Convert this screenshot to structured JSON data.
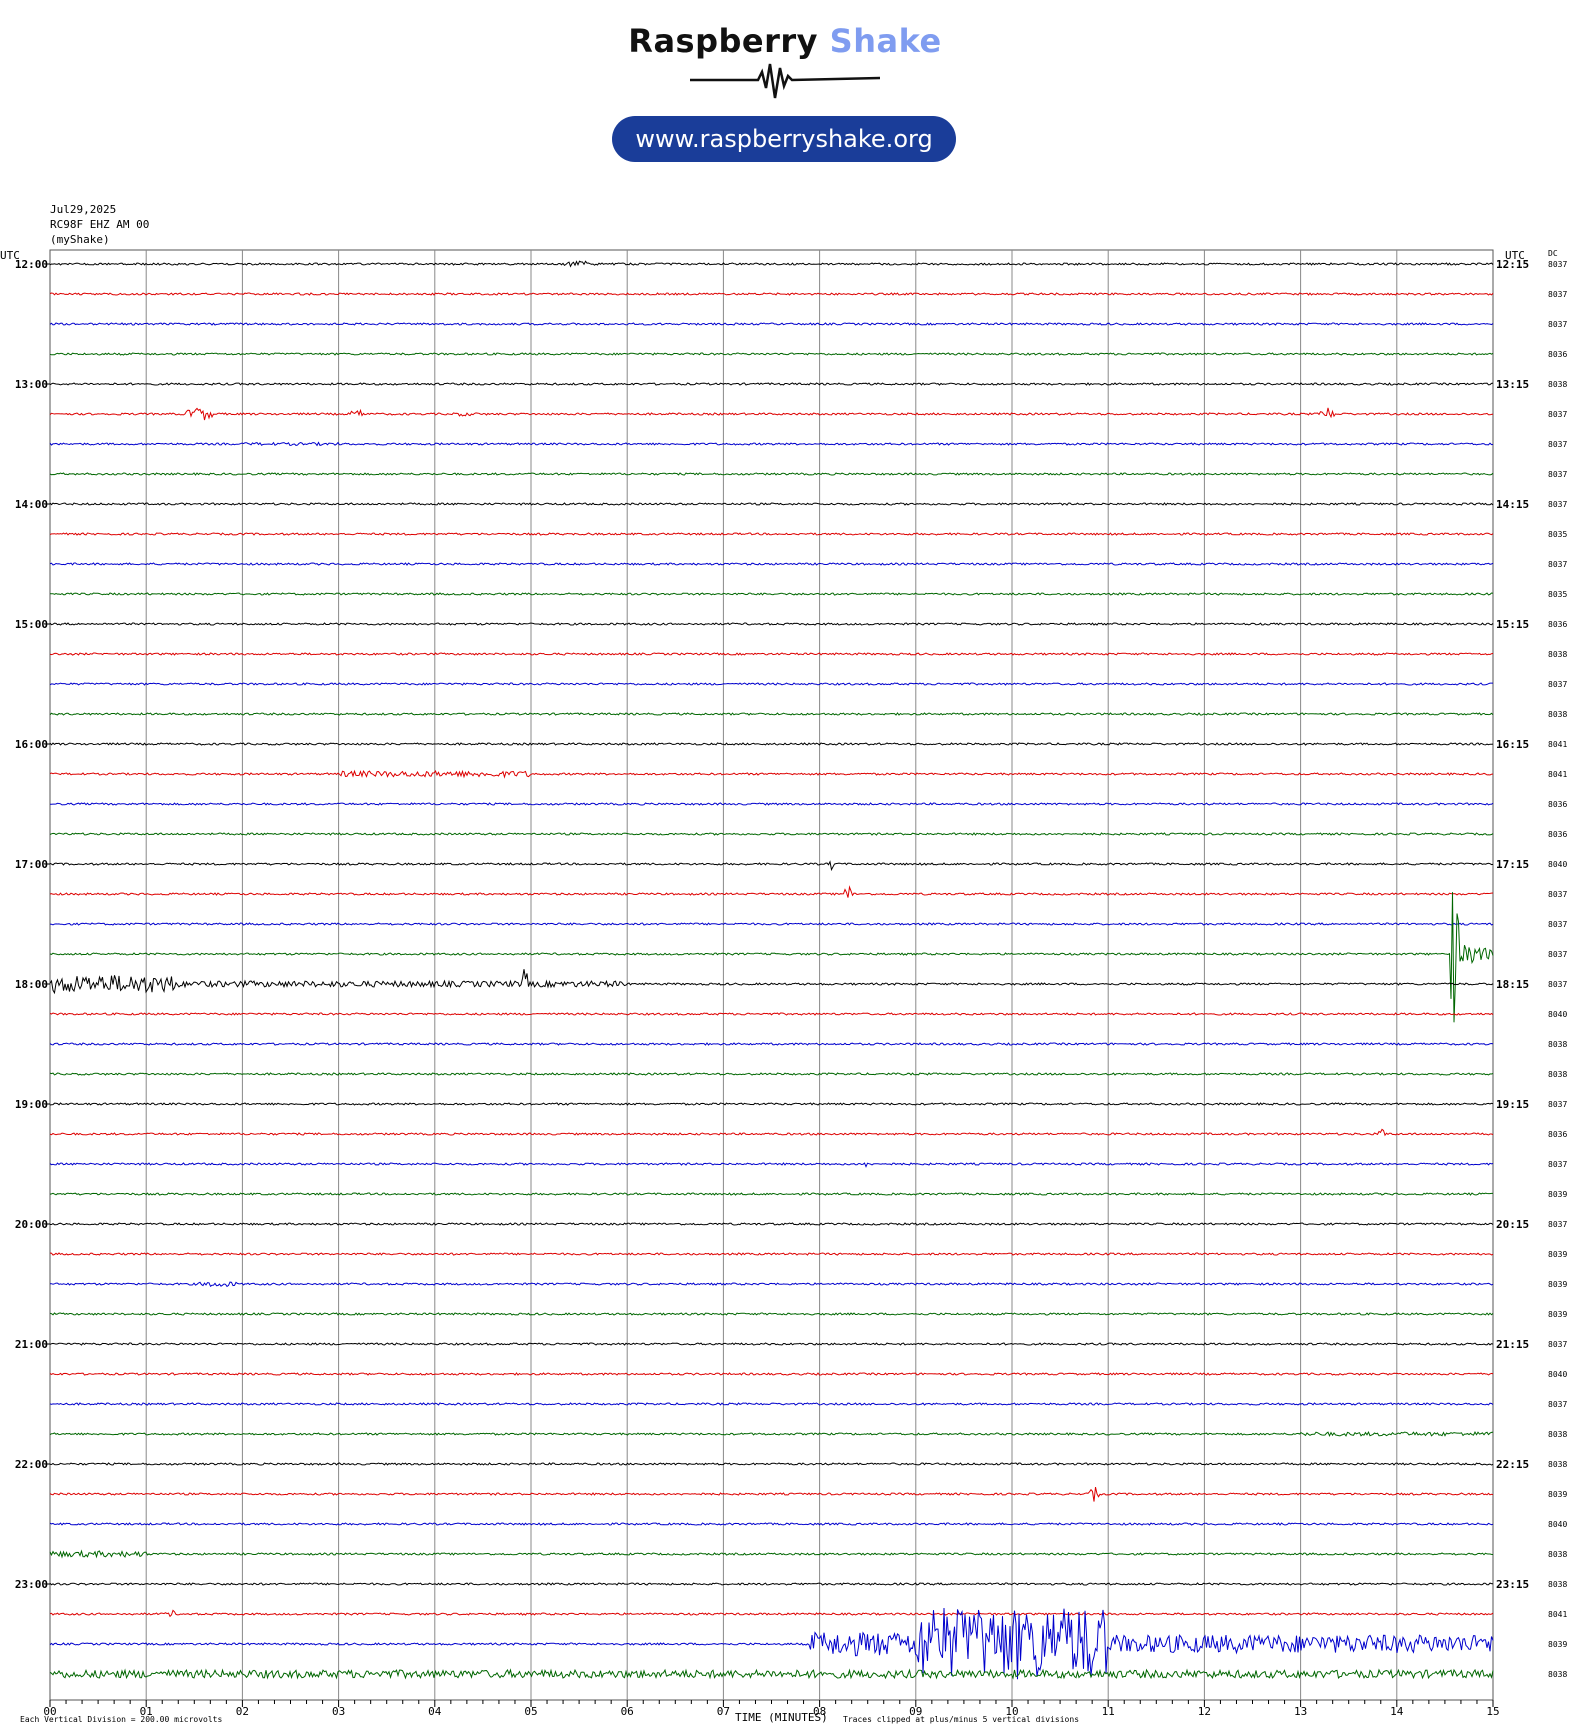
{
  "header": {
    "brand_part1": "Raspberry",
    "brand_part2": "Shake",
    "url": "www.raspberryshake.org"
  },
  "colors": {
    "brand_dark": "#1a3d99",
    "brand_light": "#7f9cf0",
    "trace_cycle": [
      "#000000",
      "#dd0000",
      "#0000cc",
      "#006600"
    ]
  },
  "chart_data": {
    "type": "helicorder",
    "date": "Jul29,2025",
    "station": "RC98F EHZ AM 00",
    "network_label": "(myShake)",
    "left_axis_title": "UTC",
    "right_axis_title": "UTC",
    "dc_column_title": "DC",
    "xlabel": "TIME (MINUTES)",
    "xlim": [
      0,
      15
    ],
    "x_ticks": [
      "00",
      "01",
      "02",
      "03",
      "04",
      "05",
      "06",
      "07",
      "08",
      "09",
      "10",
      "11",
      "12",
      "13",
      "14",
      "15"
    ],
    "left_hour_labels": [
      "12:00",
      "13:00",
      "14:00",
      "15:00",
      "16:00",
      "17:00",
      "18:00",
      "19:00",
      "20:00",
      "21:00",
      "22:00",
      "23:00"
    ],
    "right_hour_labels": [
      "12:15",
      "13:15",
      "14:15",
      "15:15",
      "16:15",
      "17:15",
      "18:15",
      "19:15",
      "20:15",
      "21:15",
      "22:15",
      "23:15"
    ],
    "dc_offsets": [
      "8037",
      "8037",
      "8037",
      "8036",
      "8038",
      "8037",
      "8037",
      "8037",
      "8037",
      "8035",
      "8037",
      "8035",
      "8036",
      "8038",
      "8037",
      "8038",
      "8041",
      "8041",
      "8036",
      "8036",
      "8040",
      "8037",
      "8037",
      "8037",
      "8037",
      "8040",
      "8038",
      "8038",
      "8037",
      "8036",
      "8037",
      "8039",
      "8037",
      "8039",
      "8039",
      "8039",
      "8037",
      "8040",
      "8037",
      "8038",
      "8038",
      "8039",
      "8040",
      "8038",
      "8038",
      "8041",
      "8039",
      "8038"
    ],
    "footer_scale": "Each Vertical Division =  200.00 microvolts",
    "footer_clip": "Traces clipped at plus/minus 5 vertical divisions",
    "events": [
      {
        "row": 0,
        "start_min": 5.3,
        "end_min": 5.7,
        "amplitude": 3
      },
      {
        "row": 5,
        "start_min": 1.4,
        "end_min": 1.7,
        "amplitude": 7
      },
      {
        "row": 5,
        "start_min": 3.1,
        "end_min": 3.3,
        "amplitude": 4
      },
      {
        "row": 5,
        "start_min": 4.1,
        "end_min": 4.5,
        "amplitude": 2
      },
      {
        "row": 5,
        "start_min": 13.2,
        "end_min": 13.35,
        "amplitude": 7
      },
      {
        "row": 6,
        "start_min": 2.0,
        "end_min": 3.0,
        "amplitude": 1.5
      },
      {
        "row": 17,
        "start_min": 3.0,
        "end_min": 5.0,
        "amplitude": 3
      },
      {
        "row": 20,
        "start_min": 8.1,
        "end_min": 8.15,
        "amplitude": 8
      },
      {
        "row": 21,
        "start_min": 8.25,
        "end_min": 8.35,
        "amplitude": 9
      },
      {
        "row": 23,
        "start_min": 14.55,
        "end_min": 15.0,
        "amplitude": 10
      },
      {
        "row": 23,
        "start_min": 14.55,
        "end_min": 14.65,
        "amplitude": 80
      },
      {
        "row": 24,
        "start_min": 0.0,
        "end_min": 1.3,
        "amplitude": 9
      },
      {
        "row": 24,
        "start_min": 1.0,
        "end_min": 6.0,
        "amplitude": 3
      },
      {
        "row": 24,
        "start_min": 4.9,
        "end_min": 4.97,
        "amplitude": 16
      },
      {
        "row": 29,
        "start_min": 13.8,
        "end_min": 13.9,
        "amplitude": 5
      },
      {
        "row": 30,
        "start_min": 8.45,
        "end_min": 8.5,
        "amplitude": 5
      },
      {
        "row": 34,
        "start_min": 1.5,
        "end_min": 2.0,
        "amplitude": 3
      },
      {
        "row": 39,
        "start_min": 13.0,
        "end_min": 15.0,
        "amplitude": 2
      },
      {
        "row": 41,
        "start_min": 10.8,
        "end_min": 10.9,
        "amplitude": 8
      },
      {
        "row": 43,
        "start_min": 0.0,
        "end_min": 1.0,
        "amplitude": 3
      },
      {
        "row": 45,
        "start_min": 1.2,
        "end_min": 1.3,
        "amplitude": 5
      },
      {
        "row": 46,
        "start_min": 7.9,
        "end_min": 9.0,
        "amplitude": 12
      },
      {
        "row": 46,
        "start_min": 9.0,
        "end_min": 11.0,
        "amplitude": 36
      },
      {
        "row": 46,
        "start_min": 11.0,
        "end_min": 15.0,
        "amplitude": 9
      },
      {
        "row": 47,
        "start_min": 0.0,
        "end_min": 15.0,
        "amplitude": 4
      }
    ]
  }
}
